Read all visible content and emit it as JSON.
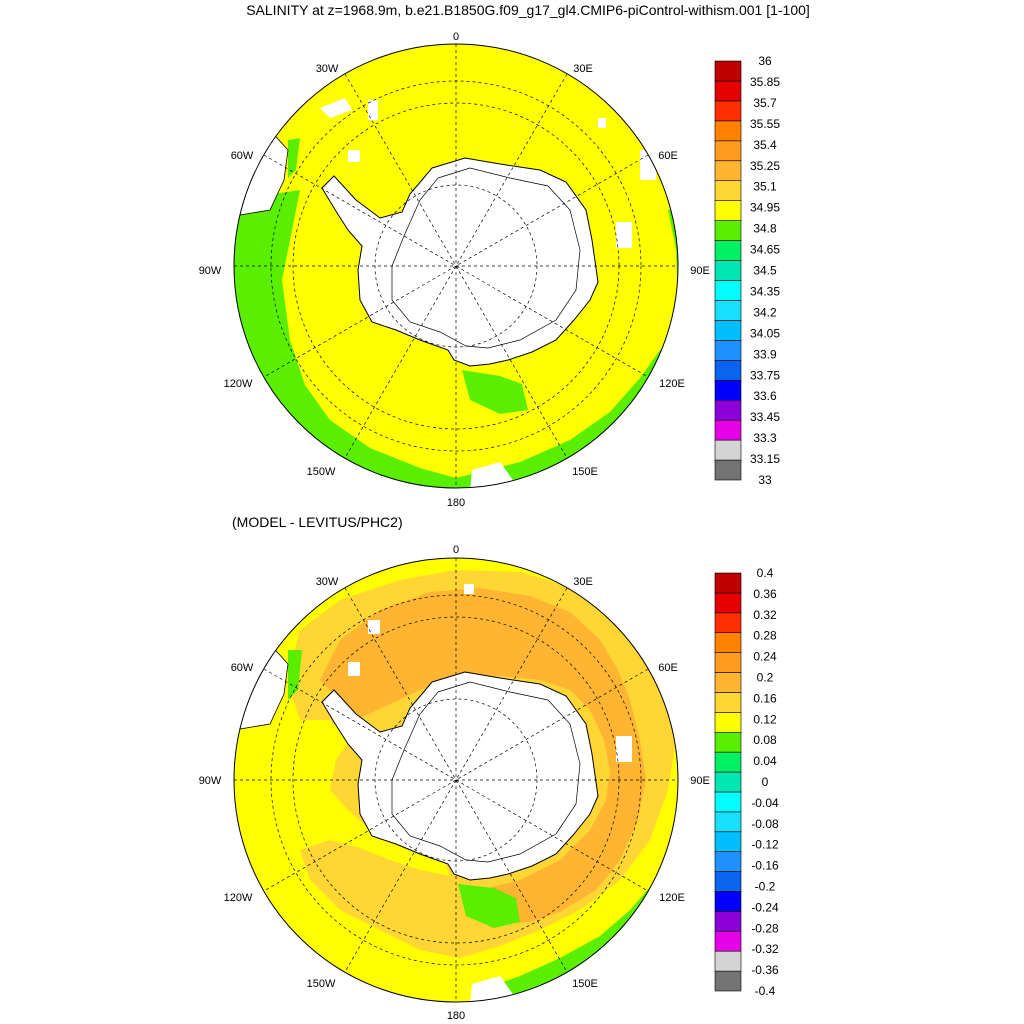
{
  "titles": {
    "main": "SALINITY at z=1968.9m, b.e21.B1850G.f09_g17_gl4.CMIP6-piControl-withism.001 [1-100]",
    "diff": "(MODEL - LEVITUS/PHC2)"
  },
  "lon_labels": [
    "0",
    "30E",
    "60E",
    "90E",
    "120E",
    "150E",
    "180",
    "150W",
    "120W",
    "90W",
    "60W",
    "30W"
  ],
  "colors": {
    "ramp": [
      "#737373",
      "#d4d4d4",
      "#e600e6",
      "#8c00d9",
      "#0000ff",
      "#0a64f0",
      "#1e90ff",
      "#00bfff",
      "#18e0ff",
      "#00ffff",
      "#00e6b4",
      "#00f064",
      "#5aef00",
      "#ffff00",
      "#ffd633",
      "#ffb432",
      "#ff9b1e",
      "#ff8200",
      "#ff2d00",
      "#e60000",
      "#bf0000"
    ],
    "land": "#ffffff",
    "missing": "#ffffff",
    "line": "#000000"
  },
  "maps": [
    {
      "id": "salinity",
      "colorbar_labels": [
        "33",
        "33.15",
        "33.3",
        "33.45",
        "33.6",
        "33.75",
        "33.9",
        "34.05",
        "34.2",
        "34.35",
        "34.5",
        "34.65",
        "34.8",
        "34.95",
        "35.1",
        "35.25",
        "35.4",
        "35.55",
        "35.7",
        "35.85",
        "36"
      ]
    },
    {
      "id": "difference",
      "colorbar_labels": [
        "-0.4",
        "-0.36",
        "-0.32",
        "-0.28",
        "-0.24",
        "-0.2",
        "-0.16",
        "-0.12",
        "-0.08",
        "-0.04",
        "0",
        "0.04",
        "0.08",
        "0.12",
        "0.16",
        "0.2",
        "0.24",
        "0.28",
        "0.32",
        "0.36",
        "0.4"
      ]
    }
  ]
}
